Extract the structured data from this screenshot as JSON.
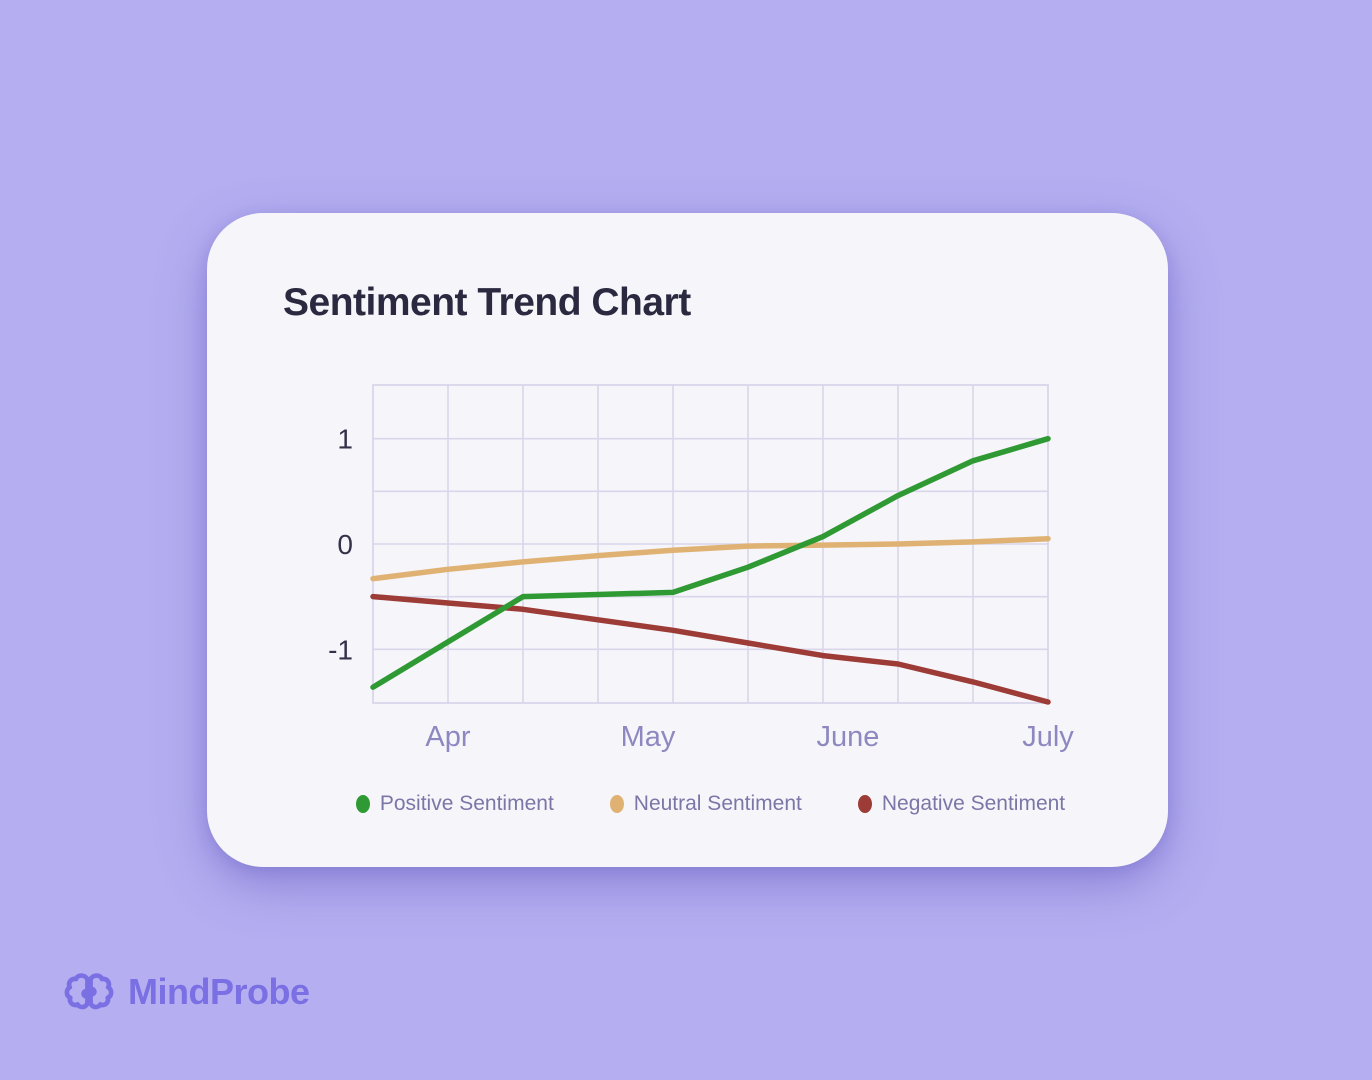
{
  "card": {
    "title": "Sentiment Trend Chart"
  },
  "chart_data": {
    "type": "line",
    "title": "Sentiment Trend Chart",
    "x_axis": {
      "labels": [
        "Apr",
        "May",
        "June",
        "July"
      ],
      "label_positions_index": [
        1,
        3.6667,
        6.3333,
        9
      ]
    },
    "y_axis": {
      "tick_labels": [
        "1",
        "0",
        "-1"
      ],
      "tick_values": [
        1,
        0,
        -1
      ],
      "range": [
        -1.51,
        1.51
      ],
      "gridline_step": 0.5
    },
    "n_points": 10,
    "grid": true,
    "legend_position": "bottom",
    "grid_color": "#d9d6ea",
    "series": [
      {
        "name": "Positive Sentiment",
        "color": "#2f9a33",
        "values": [
          -1.36,
          -0.93,
          -0.5,
          -0.48,
          -0.46,
          -0.22,
          0.07,
          0.46,
          0.79,
          1.0
        ]
      },
      {
        "name": "Neutral Sentiment",
        "color": "#dfb273",
        "values": [
          -0.33,
          -0.24,
          -0.17,
          -0.11,
          -0.06,
          -0.02,
          -0.01,
          0.0,
          0.02,
          0.05
        ]
      },
      {
        "name": "Negative Sentiment",
        "color": "#9d3b36",
        "values": [
          -0.5,
          -0.56,
          -0.62,
          -0.72,
          -0.82,
          -0.94,
          -1.06,
          -1.14,
          -1.31,
          -1.5
        ]
      }
    ]
  },
  "brand": {
    "name": "MindProbe",
    "color": "#7a6fe3",
    "logo_icon": "brain-icon"
  }
}
